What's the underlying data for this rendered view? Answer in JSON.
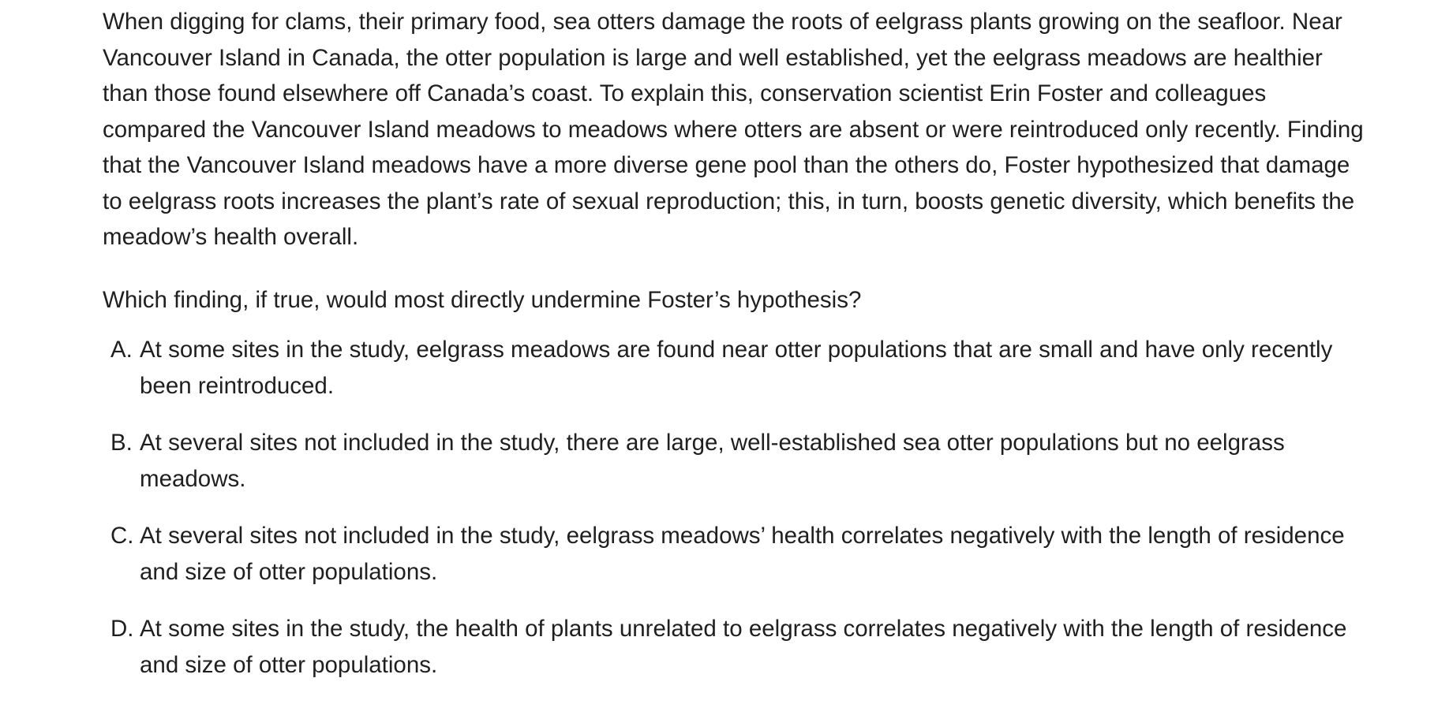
{
  "passage": {
    "text": "When digging for clams, their primary food, sea otters damage the roots of eelgrass plants growing on the seafloor. Near Vancouver Island in Canada, the otter population is large and well established, yet the eelgrass meadows are healthier than those found elsewhere off Canada’s coast. To explain this, conservation scientist Erin Foster and colleagues compared the Vancouver Island meadows to meadows where otters are absent or were reintroduced only recently. Finding that the Vancouver Island meadows have a more diverse gene pool than the others do, Foster hypothesized that damage to eelgrass roots increases the plant’s rate of sexual reproduction; this, in turn, boosts genetic diversity, which benefits the meadow’s health overall."
  },
  "question": {
    "text": "Which finding, if true, would most directly undermine Foster’s hypothesis?"
  },
  "choices": [
    {
      "letter": "A.",
      "text": "At some sites in the study, eelgrass meadows are found near otter populations that are small and have only recently been reintroduced."
    },
    {
      "letter": "B.",
      "text": "At several sites not included in the study, there are large, well-established sea otter populations but no eelgrass meadows."
    },
    {
      "letter": "C.",
      "text": "At several sites not included in the study, eelgrass meadows’ health correlates negatively with the length of residence and size of otter populations."
    },
    {
      "letter": "D.",
      "text": "At some sites in the study, the health of plants unrelated to eelgrass correlates negatively with the length of residence and size of otter populations."
    }
  ]
}
